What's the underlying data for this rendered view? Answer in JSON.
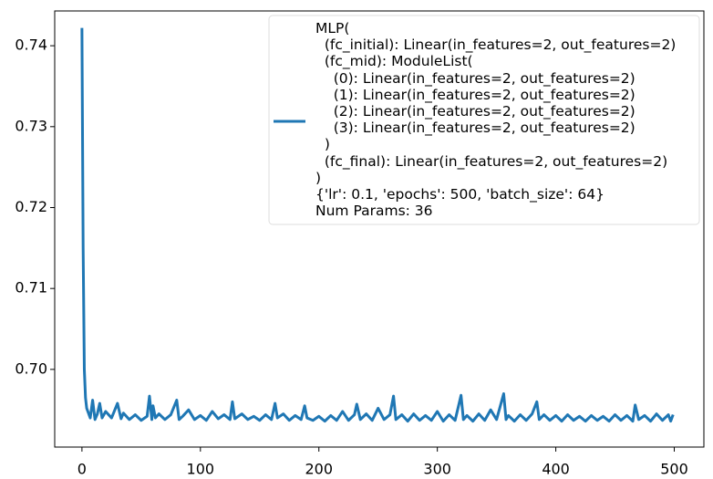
{
  "chart_data": {
    "type": "line",
    "x": [
      0,
      1,
      2,
      3,
      4,
      5,
      7,
      9,
      11,
      13,
      15,
      17,
      20,
      25,
      30,
      33,
      35,
      40,
      45,
      50,
      55,
      57,
      59,
      60,
      62,
      65,
      70,
      75,
      80,
      82,
      85,
      90,
      95,
      100,
      105,
      110,
      115,
      120,
      125,
      127,
      129,
      135,
      140,
      145,
      150,
      155,
      160,
      163,
      165,
      170,
      175,
      180,
      185,
      188,
      190,
      195,
      200,
      205,
      210,
      215,
      220,
      225,
      230,
      232,
      235,
      240,
      245,
      250,
      255,
      260,
      263,
      265,
      270,
      275,
      280,
      285,
      290,
      295,
      300,
      305,
      310,
      315,
      320,
      322,
      325,
      330,
      335,
      340,
      345,
      350,
      356,
      358,
      360,
      365,
      370,
      375,
      380,
      384,
      386,
      390,
      395,
      400,
      405,
      410,
      415,
      420,
      425,
      430,
      435,
      440,
      445,
      450,
      455,
      460,
      465,
      467,
      470,
      475,
      480,
      485,
      490,
      495,
      497,
      499
    ],
    "series": [
      {
        "name": "MLP(\n  (fc_initial): Linear(in_features=2, out_features=2)\n  (fc_mid): ModuleList(\n    (0): Linear(in_features=2, out_features=2)\n    (1): Linear(in_features=2, out_features=2)\n    (2): Linear(in_features=2, out_features=2)\n    (3): Linear(in_features=2, out_features=2)\n  )\n  (fc_final): Linear(in_features=2, out_features=2)\n)\n{'lr': 0.1, 'epochs': 500, 'batch_size': 64}\nNum Params: 36",
        "color": "#1f77b4",
        "values": [
          0.7422,
          0.715,
          0.7,
          0.6965,
          0.6952,
          0.6948,
          0.694,
          0.6962,
          0.6938,
          0.6945,
          0.6958,
          0.694,
          0.6948,
          0.694,
          0.6958,
          0.6939,
          0.6946,
          0.6938,
          0.6944,
          0.6937,
          0.6942,
          0.6967,
          0.6938,
          0.6955,
          0.694,
          0.6945,
          0.6938,
          0.6944,
          0.6962,
          0.6938,
          0.6942,
          0.695,
          0.6938,
          0.6943,
          0.6937,
          0.6948,
          0.6939,
          0.6944,
          0.6938,
          0.696,
          0.6939,
          0.6945,
          0.6938,
          0.6942,
          0.6937,
          0.6944,
          0.6938,
          0.6958,
          0.694,
          0.6945,
          0.6937,
          0.6943,
          0.6938,
          0.6955,
          0.694,
          0.6937,
          0.6942,
          0.6936,
          0.6943,
          0.6937,
          0.6948,
          0.6937,
          0.6944,
          0.6957,
          0.6938,
          0.6945,
          0.6937,
          0.6952,
          0.6938,
          0.6944,
          0.6967,
          0.6938,
          0.6944,
          0.6936,
          0.6945,
          0.6937,
          0.6943,
          0.6937,
          0.6948,
          0.6936,
          0.6944,
          0.6937,
          0.6968,
          0.6938,
          0.6943,
          0.6936,
          0.6945,
          0.6937,
          0.695,
          0.6938,
          0.697,
          0.6938,
          0.6943,
          0.6936,
          0.6944,
          0.6937,
          0.6945,
          0.696,
          0.6938,
          0.6944,
          0.6937,
          0.6943,
          0.6936,
          0.6944,
          0.6937,
          0.6942,
          0.6936,
          0.6943,
          0.6937,
          0.6942,
          0.6936,
          0.6944,
          0.6937,
          0.6943,
          0.6936,
          0.6956,
          0.6938,
          0.6943,
          0.6936,
          0.6945,
          0.6937,
          0.6944,
          0.6936,
          0.6944
        ]
      }
    ],
    "xlim": [
      -23,
      525
    ],
    "ylim": [
      0.6904,
      0.7443
    ],
    "xticks": [
      0,
      100,
      200,
      300,
      400,
      500
    ],
    "yticks": [
      {
        "value": 0.7,
        "label": "0.70"
      },
      0.71,
      0.72,
      0.73,
      0.74
    ],
    "grid": false
  }
}
